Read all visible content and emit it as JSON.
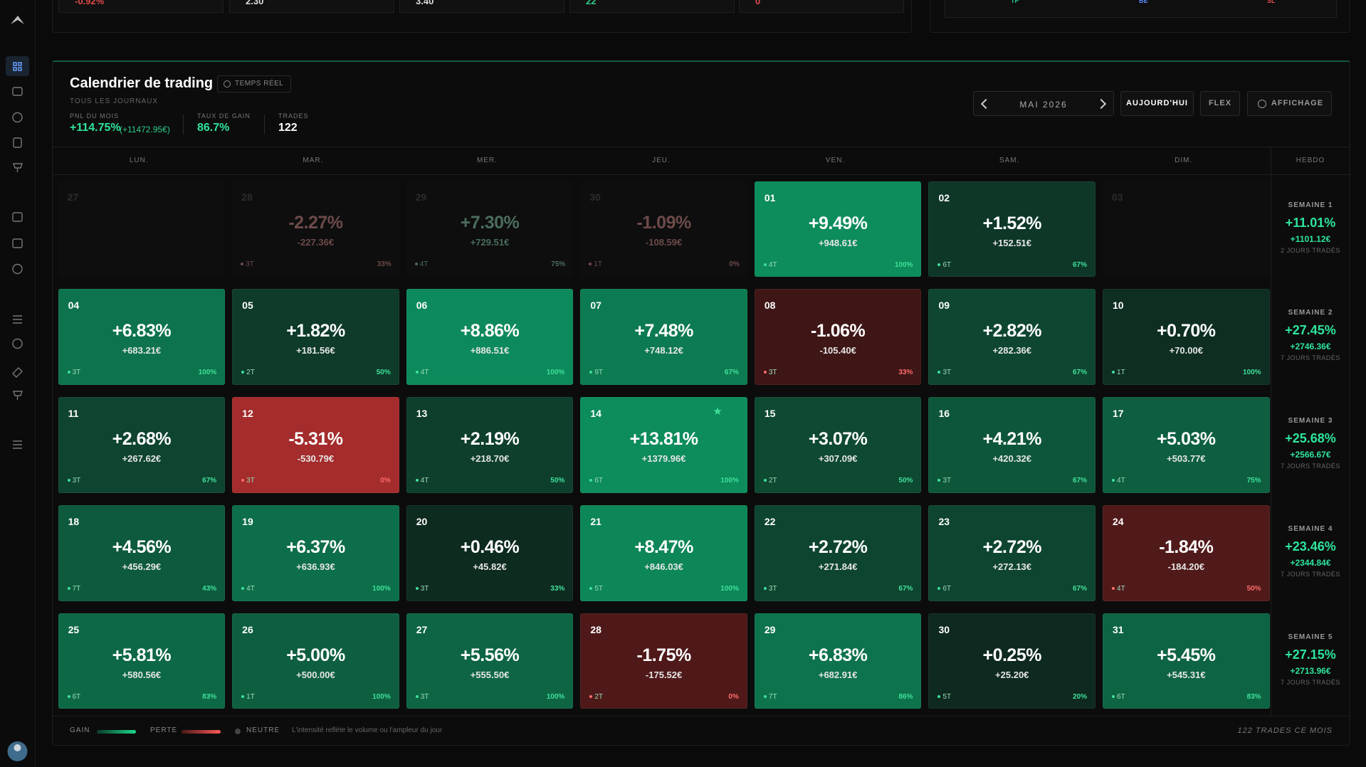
{
  "top_cards": [
    "-0.92%",
    "2.30",
    "3.40",
    "22",
    "0"
  ],
  "top_labels": [
    "TP",
    "BE",
    "SL"
  ],
  "header": {
    "title": "Calendrier de trading",
    "badge": "TEMPS RÉEL",
    "subtitle": "TOUS LES JOURNAUX",
    "stats": [
      {
        "label": "PNL DU MOIS",
        "value": "+114.75%",
        "extra": "(+11472.95€)"
      },
      {
        "label": "TAUX DE GAIN",
        "value": "86.7%"
      },
      {
        "label": "TRADES",
        "value": "122"
      }
    ]
  },
  "nav": {
    "month": "MAI 2026",
    "today": "AUJOURD'HUI",
    "flex": "FLEX",
    "display": "AFFICHAGE"
  },
  "weekdays": [
    "LUN.",
    "MAR.",
    "MER.",
    "JEU.",
    "VEN.",
    "SAM.",
    "DIM."
  ],
  "weekly_header": "HEBDO",
  "weeks": [
    {
      "days": [
        {
          "day": "27",
          "faded": true
        },
        {
          "day": "28",
          "faded": true,
          "pct": "-2.27%",
          "amount": "-227.36€",
          "trades": "3T",
          "winrate": "33%"
        },
        {
          "day": "29",
          "faded": true,
          "pct": "+7.30%",
          "amount": "+729.51€",
          "trades": "4T",
          "winrate": "75%"
        },
        {
          "day": "30",
          "faded": true,
          "pct": "-1.09%",
          "amount": "-108.59€",
          "trades": "1T",
          "winrate": "0%"
        },
        {
          "day": "01",
          "pct": "+9.49%",
          "amount": "+948.61€",
          "trades": "4T",
          "winrate": "100%"
        },
        {
          "day": "02",
          "pct": "+1.52%",
          "amount": "+152.51€",
          "trades": "6T",
          "winrate": "67%"
        },
        {
          "day": "03",
          "faded": true
        }
      ],
      "summary": {
        "label": "SEMAINE 1",
        "pct": "+11.01%",
        "amount": "+1101.12€",
        "days": "2 JOURS TRADÉS"
      }
    },
    {
      "days": [
        {
          "day": "04",
          "pct": "+6.83%",
          "amount": "+683.21€",
          "trades": "3T",
          "winrate": "100%"
        },
        {
          "day": "05",
          "pct": "+1.82%",
          "amount": "+181.56€",
          "trades": "2T",
          "winrate": "50%"
        },
        {
          "day": "06",
          "pct": "+8.86%",
          "amount": "+886.51€",
          "trades": "4T",
          "winrate": "100%"
        },
        {
          "day": "07",
          "pct": "+7.48%",
          "amount": "+748.12€",
          "trades": "9T",
          "winrate": "67%"
        },
        {
          "day": "08",
          "pct": "-1.06%",
          "amount": "-105.40€",
          "trades": "3T",
          "winrate": "33%"
        },
        {
          "day": "09",
          "pct": "+2.82%",
          "amount": "+282.36€",
          "trades": "3T",
          "winrate": "67%"
        },
        {
          "day": "10",
          "pct": "+0.70%",
          "amount": "+70.00€",
          "trades": "1T",
          "winrate": "100%"
        }
      ],
      "summary": {
        "label": "SEMAINE 2",
        "pct": "+27.45%",
        "amount": "+2746.36€",
        "days": "7 JOURS TRADÉS"
      }
    },
    {
      "days": [
        {
          "day": "11",
          "pct": "+2.68%",
          "amount": "+267.62€",
          "trades": "3T",
          "winrate": "67%"
        },
        {
          "day": "12",
          "pct": "-5.31%",
          "amount": "-530.79€",
          "trades": "3T",
          "winrate": "0%"
        },
        {
          "day": "13",
          "pct": "+2.19%",
          "amount": "+218.70€",
          "trades": "4T",
          "winrate": "50%"
        },
        {
          "day": "14",
          "pct": "+13.81%",
          "amount": "+1379.96€",
          "trades": "6T",
          "winrate": "100%",
          "star": true
        },
        {
          "day": "15",
          "pct": "+3.07%",
          "amount": "+307.09€",
          "trades": "2T",
          "winrate": "50%"
        },
        {
          "day": "16",
          "pct": "+4.21%",
          "amount": "+420.32€",
          "trades": "3T",
          "winrate": "67%"
        },
        {
          "day": "17",
          "pct": "+5.03%",
          "amount": "+503.77€",
          "trades": "4T",
          "winrate": "75%"
        }
      ],
      "summary": {
        "label": "SEMAINE 3",
        "pct": "+25.68%",
        "amount": "+2566.67€",
        "days": "7 JOURS TRADÉS"
      }
    },
    {
      "days": [
        {
          "day": "18",
          "pct": "+4.56%",
          "amount": "+456.29€",
          "trades": "7T",
          "winrate": "43%"
        },
        {
          "day": "19",
          "pct": "+6.37%",
          "amount": "+636.93€",
          "trades": "4T",
          "winrate": "100%"
        },
        {
          "day": "20",
          "pct": "+0.46%",
          "amount": "+45.82€",
          "trades": "3T",
          "winrate": "33%"
        },
        {
          "day": "21",
          "pct": "+8.47%",
          "amount": "+846.03€",
          "trades": "5T",
          "winrate": "100%"
        },
        {
          "day": "22",
          "pct": "+2.72%",
          "amount": "+271.84€",
          "trades": "3T",
          "winrate": "67%"
        },
        {
          "day": "23",
          "pct": "+2.72%",
          "amount": "+272.13€",
          "trades": "6T",
          "winrate": "67%"
        },
        {
          "day": "24",
          "pct": "-1.84%",
          "amount": "-184.20€",
          "trades": "4T",
          "winrate": "50%"
        }
      ],
      "summary": {
        "label": "SEMAINE 4",
        "pct": "+23.46%",
        "amount": "+2344.84€",
        "days": "7 JOURS TRADÉS"
      }
    },
    {
      "days": [
        {
          "day": "25",
          "pct": "+5.81%",
          "amount": "+580.56€",
          "trades": "6T",
          "winrate": "83%"
        },
        {
          "day": "26",
          "pct": "+5.00%",
          "amount": "+500.00€",
          "trades": "1T",
          "winrate": "100%"
        },
        {
          "day": "27",
          "pct": "+5.56%",
          "amount": "+555.50€",
          "trades": "3T",
          "winrate": "100%"
        },
        {
          "day": "28",
          "pct": "-1.75%",
          "amount": "-175.52€",
          "trades": "2T",
          "winrate": "0%"
        },
        {
          "day": "29",
          "pct": "+6.83%",
          "amount": "+682.91€",
          "trades": "7T",
          "winrate": "86%"
        },
        {
          "day": "30",
          "pct": "+0.25%",
          "amount": "+25.20€",
          "trades": "5T",
          "winrate": "20%"
        },
        {
          "day": "31",
          "pct": "+5.45%",
          "amount": "+545.31€",
          "trades": "6T",
          "winrate": "83%"
        }
      ],
      "summary": {
        "label": "SEMAINE 5",
        "pct": "+27.15%",
        "amount": "+2713.96€",
        "days": "7 JOURS TRADÉS"
      }
    }
  ],
  "legend": {
    "gain": "GAIN",
    "loss": "PERTE",
    "neutral": "NEUTRE",
    "note": "L'intensité reflète le volume ou l'ampleur du jour"
  },
  "footer": "122 TRADES CE MOIS"
}
